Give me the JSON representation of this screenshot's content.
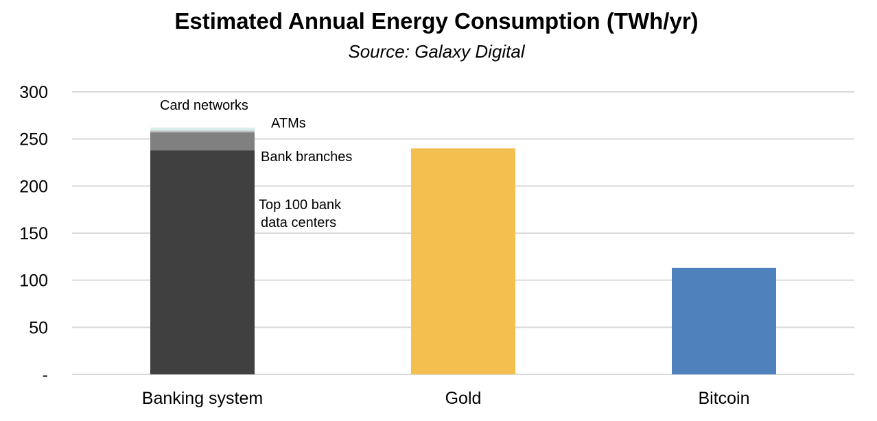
{
  "chart_data": {
    "type": "bar",
    "stacked": true,
    "title": "Estimated Annual Energy Consumption (TWh/yr)",
    "subtitle": "Source: Galaxy Digital",
    "xlabel": "",
    "ylabel": "",
    "ylim": [
      0,
      300
    ],
    "yticks": [
      {
        "value": 0,
        "label": "-"
      },
      {
        "value": 50,
        "label": "50"
      },
      {
        "value": 100,
        "label": "100"
      },
      {
        "value": 150,
        "label": "150"
      },
      {
        "value": 200,
        "label": "200"
      },
      {
        "value": 250,
        "label": "250"
      },
      {
        "value": 300,
        "label": "300"
      }
    ],
    "grid": true,
    "legend": "none",
    "categories": [
      "Banking system",
      "Gold",
      "Bitcoin"
    ],
    "series": [
      {
        "name": "Top 100 bank data centers",
        "color": "#404040",
        "values": [
          238,
          240,
          113
        ]
      },
      {
        "name": "Bank branches",
        "color": "#808080",
        "values": [
          19,
          0,
          0
        ]
      },
      {
        "name": "ATMs",
        "color": "#bfbfbf",
        "values": [
          2,
          0,
          0
        ]
      },
      {
        "name": "Card networks",
        "color": "#d9ece9",
        "values": [
          3,
          0,
          0
        ]
      }
    ],
    "bar_colors": [
      "#404040",
      "#f5bf4f",
      "#4f81bd"
    ]
  }
}
